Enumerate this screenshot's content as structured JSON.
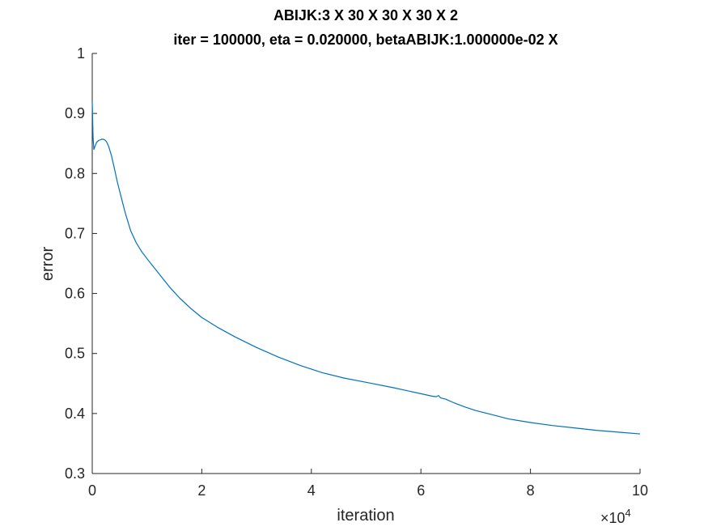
{
  "chart_data": {
    "type": "line",
    "title": "ABIJK:3 X 30 X 30 X 30 X 2",
    "subtitle": "iter = 100000, eta = 0.020000, betaABIJK:1.000000e-02 X",
    "xlabel": "iteration",
    "ylabel": "error",
    "x_exponent_label": "×10",
    "x_exponent_power": "4",
    "xlim": [
      0,
      100000
    ],
    "ylim": [
      0.3,
      1.0
    ],
    "x_ticks": [
      0,
      20000,
      40000,
      60000,
      80000,
      100000
    ],
    "x_tick_labels": [
      "0",
      "2",
      "4",
      "6",
      "8",
      "10"
    ],
    "y_ticks": [
      0.3,
      0.4,
      0.5,
      0.6,
      0.7,
      0.8,
      0.9,
      1.0
    ],
    "y_tick_labels": [
      "0.3",
      "0.4",
      "0.5",
      "0.6",
      "0.7",
      "0.8",
      "0.9",
      "1"
    ],
    "grid": false,
    "line_color": "#0072bd",
    "series": [
      {
        "x": [
          0,
          150,
          300,
          500,
          800,
          1200,
          1700,
          2000,
          2300,
          2600,
          3000,
          3500,
          4000,
          4600,
          5300,
          6000,
          7000,
          8000,
          9000,
          10000,
          12000,
          14000,
          16000,
          18000,
          20000,
          23000,
          26000,
          30000,
          34000,
          38000,
          42000,
          46000,
          50000,
          55000,
          60000,
          62000,
          62800,
          63200,
          63600,
          64500,
          66000,
          68000,
          70000,
          73000,
          76000,
          80000,
          84000,
          88000,
          92000,
          96000,
          100000
        ],
        "y": [
          0.92,
          0.86,
          0.84,
          0.845,
          0.852,
          0.855,
          0.857,
          0.857,
          0.856,
          0.853,
          0.845,
          0.83,
          0.81,
          0.785,
          0.76,
          0.735,
          0.705,
          0.685,
          0.67,
          0.658,
          0.635,
          0.612,
          0.592,
          0.575,
          0.56,
          0.543,
          0.528,
          0.51,
          0.494,
          0.48,
          0.468,
          0.459,
          0.452,
          0.443,
          0.433,
          0.429,
          0.428,
          0.43,
          0.426,
          0.424,
          0.418,
          0.411,
          0.405,
          0.398,
          0.391,
          0.385,
          0.38,
          0.376,
          0.372,
          0.369,
          0.366
        ]
      }
    ]
  }
}
